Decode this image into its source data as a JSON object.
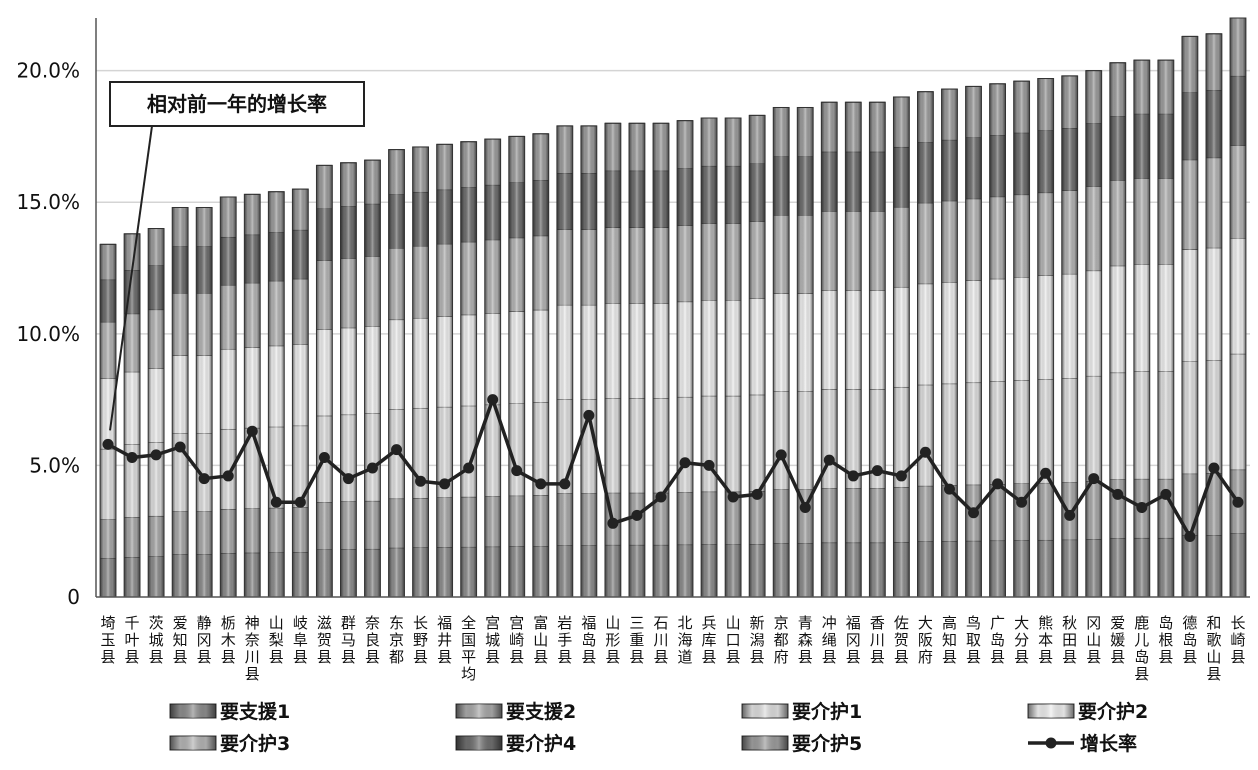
{
  "chart_data": {
    "type": "bar",
    "stacked": true,
    "y_ticks": [
      "0",
      "5.0%",
      "10.0%",
      "15.0%",
      "20.0%"
    ],
    "y_tick_values": [
      0,
      5,
      10,
      15,
      20
    ],
    "ylim": [
      0,
      22
    ],
    "annotation": "相对前一年的增长率",
    "categories": [
      "埼玉县",
      "千叶县",
      "茨城县",
      "爱知县",
      "静冈县",
      "栃木县",
      "神奈川县",
      "山梨县",
      "岐阜县",
      "滋贺县",
      "群马县",
      "奈良县",
      "东京都",
      "长野县",
      "福井县",
      "全国平均",
      "宫城县",
      "宫崎县",
      "富山县",
      "岩手县",
      "福岛县",
      "山形县",
      "三重县",
      "石川县",
      "北海道",
      "兵库县",
      "山口县",
      "新潟县",
      "京都府",
      "青森县",
      "冲绳县",
      "福冈县",
      "香川县",
      "佐贺县",
      "大阪府",
      "高知县",
      "鸟取县",
      "广岛县",
      "大分县",
      "熊本县",
      "秋田县",
      "冈山县",
      "爱媛县",
      "鹿儿岛县",
      "岛根县",
      "德岛县",
      "和歌山县",
      "长崎县"
    ],
    "totals": [
      13.4,
      13.8,
      14.0,
      14.8,
      14.8,
      15.2,
      15.3,
      15.4,
      15.5,
      16.4,
      16.5,
      16.6,
      17.0,
      17.1,
      17.2,
      17.3,
      17.4,
      17.5,
      17.6,
      17.9,
      17.9,
      18.0,
      18.0,
      18.0,
      18.1,
      18.2,
      18.2,
      18.3,
      18.6,
      18.6,
      18.8,
      18.8,
      18.8,
      19.0,
      19.2,
      19.3,
      19.4,
      19.5,
      19.6,
      19.7,
      19.8,
      20.0,
      20.3,
      20.4,
      20.4,
      21.3,
      21.4,
      22.0
    ],
    "series": [
      {
        "name": "要支援1",
        "color": "#8c8c8c"
      },
      {
        "name": "要支援2",
        "color": "#a8a8a8"
      },
      {
        "name": "要介护1",
        "color": "#dedede"
      },
      {
        "name": "要介护2",
        "color": "#eeeeee"
      },
      {
        "name": "要介护3",
        "color": "#b4b4b4"
      },
      {
        "name": "要介护4",
        "color": "#6e6e6e"
      },
      {
        "name": "要介护5",
        "color": "#9c9c9c"
      }
    ],
    "shares": [
      0.11,
      0.11,
      0.2,
      0.2,
      0.16,
      0.12,
      0.1
    ],
    "line": {
      "name": "增长率",
      "values": [
        5.8,
        5.3,
        5.4,
        5.7,
        4.5,
        4.6,
        6.3,
        3.6,
        3.6,
        5.3,
        4.5,
        4.9,
        5.6,
        4.4,
        4.3,
        4.9,
        7.5,
        4.8,
        4.3,
        4.3,
        6.9,
        2.8,
        3.1,
        3.8,
        5.1,
        5.0,
        3.8,
        3.9,
        5.4,
        3.4,
        5.2,
        4.6,
        4.8,
        4.6,
        5.5,
        4.1,
        3.2,
        4.3,
        3.6,
        4.7,
        3.1,
        4.5,
        3.9,
        3.4,
        3.9,
        2.3,
        4.9,
        3.6
      ]
    },
    "legend_position": "bottom",
    "grid": true
  }
}
